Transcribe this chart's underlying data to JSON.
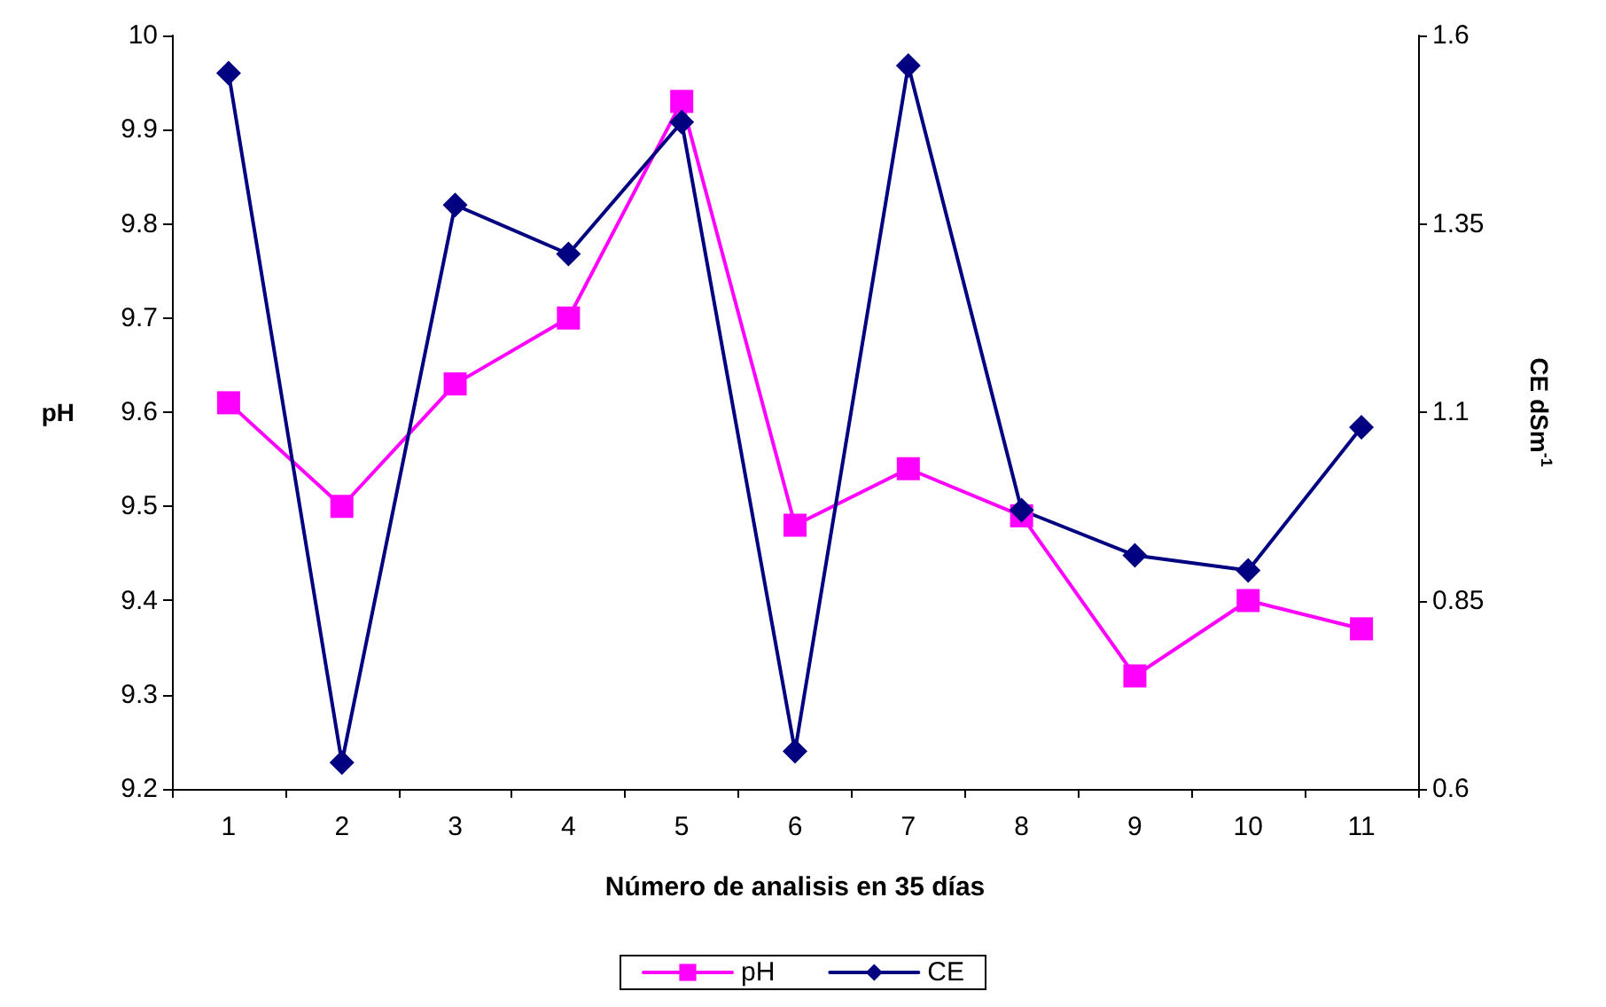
{
  "chart_data": {
    "type": "line",
    "xlabel": "Número de analisis en 35 días",
    "ylabel": "pH",
    "y2label": "CE dSm$^{-1}$",
    "categories": [
      "1",
      "2",
      "3",
      "4",
      "5",
      "6",
      "7",
      "8",
      "9",
      "10",
      "11"
    ],
    "series": [
      {
        "name": "pH",
        "color": "#ff00ff",
        "marker": "square",
        "values": [
          9.61,
          9.5,
          9.63,
          9.7,
          9.93,
          9.48,
          9.54,
          9.49,
          9.32,
          9.4,
          9.37
        ]
      },
      {
        "name": "CE",
        "color": "#000080",
        "marker": "diamond",
        "axis": "y2",
        "values": [
          1.55,
          0.635,
          1.375,
          1.31,
          1.485,
          0.65,
          1.56,
          0.97,
          0.91,
          0.89,
          1.08
        ]
      }
    ],
    "ylim": [
      9.2,
      10
    ],
    "yticks": [
      9.2,
      9.3,
      9.4,
      9.5,
      9.6,
      9.7,
      9.8,
      9.9,
      10
    ],
    "y2lim": [
      0.6,
      1.6
    ],
    "y2ticks": [
      0.6,
      0.85,
      1.1,
      1.35,
      1.6
    ],
    "grid": false,
    "legend": "bottom",
    "line_style": "solid"
  }
}
